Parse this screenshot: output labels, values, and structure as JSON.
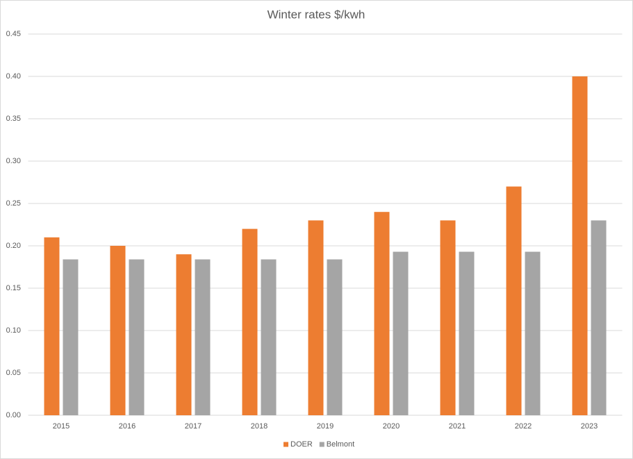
{
  "chart_data": {
    "type": "bar",
    "title": "Winter rates $/kwh",
    "categories": [
      "2015",
      "2016",
      "2017",
      "2018",
      "2019",
      "2020",
      "2021",
      "2022",
      "2023"
    ],
    "series": [
      {
        "name": "DOER",
        "color": "#ed7d31",
        "values": [
          0.21,
          0.2,
          0.19,
          0.22,
          0.23,
          0.24,
          0.23,
          0.27,
          0.4
        ]
      },
      {
        "name": "Belmont",
        "color": "#a5a5a5",
        "values": [
          0.184,
          0.184,
          0.184,
          0.184,
          0.184,
          0.193,
          0.193,
          0.193,
          0.23
        ]
      }
    ],
    "ylim": [
      0,
      0.45
    ],
    "yticks": [
      {
        "value": 0,
        "label": "0.00"
      },
      {
        "value": 0.05,
        "label": "0.05"
      },
      {
        "value": 0.1,
        "label": "0.10"
      },
      {
        "value": 0.15,
        "label": "0.15"
      },
      {
        "value": 0.2,
        "label": "0.20"
      },
      {
        "value": 0.25,
        "label": "0.25"
      },
      {
        "value": 0.3,
        "label": "0.30"
      },
      {
        "value": 0.35,
        "label": "0.35"
      },
      {
        "value": 0.4,
        "label": "0.40"
      },
      {
        "value": 0.45,
        "label": "0.45"
      }
    ],
    "grid": true,
    "legend": "bottom"
  }
}
